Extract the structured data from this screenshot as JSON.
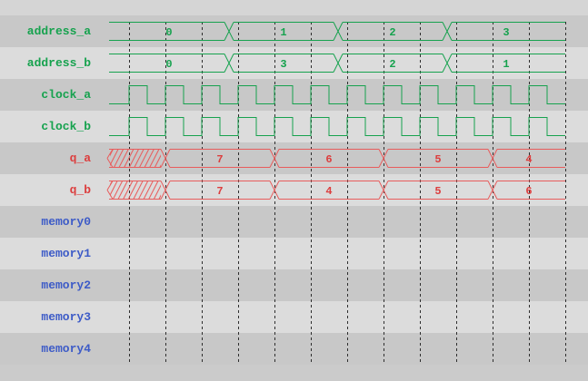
{
  "app": {
    "name": "waveform-viewer"
  },
  "palette": {
    "signal_green": "#16a24e",
    "signal_red": "#e85c5c",
    "value_red": "#dc3e3e",
    "label_blue": "#3d5bc7",
    "row_dark": "#c8c8c8",
    "row_light": "#dcdcdc",
    "top_strip": "#d5d5d5",
    "page_bg": "#cbcbcb",
    "grid": "#2e2e2e"
  },
  "chart_data": {
    "type": "waveform-timing-diagram",
    "t_start": 0,
    "t_end": 502,
    "grid": {
      "t_first": 22,
      "step": 40,
      "count": 13
    },
    "signals": [
      {
        "name": "address_a",
        "kind": "bus",
        "color": "green",
        "segments": [
          {
            "label": "0",
            "t0": 0,
            "t1": 132
          },
          {
            "label": "1",
            "t0": 132,
            "t1": 252
          },
          {
            "label": "2",
            "t0": 252,
            "t1": 372
          },
          {
            "label": "3",
            "t0": 372,
            "t1": 502
          }
        ]
      },
      {
        "name": "address_b",
        "kind": "bus",
        "color": "green",
        "segments": [
          {
            "label": "0",
            "t0": 0,
            "t1": 132
          },
          {
            "label": "3",
            "t0": 132,
            "t1": 252
          },
          {
            "label": "2",
            "t0": 252,
            "t1": 372
          },
          {
            "label": "1",
            "t0": 372,
            "t1": 502
          }
        ]
      },
      {
        "name": "clock_a",
        "kind": "clock",
        "color": "green",
        "clock": {
          "t_first_rise": 22,
          "period": 40,
          "high_width": 20
        }
      },
      {
        "name": "clock_b",
        "kind": "clock",
        "color": "green",
        "clock": {
          "t_first_rise": 22,
          "period": 40,
          "high_width": 20
        }
      },
      {
        "name": "q_a",
        "kind": "bus",
        "color": "red",
        "segments": [
          {
            "label": "",
            "unknown": true,
            "t0": 0,
            "t1": 62
          },
          {
            "label": "7",
            "t0": 62,
            "t1": 182
          },
          {
            "label": "6",
            "t0": 182,
            "t1": 302
          },
          {
            "label": "5",
            "t0": 302,
            "t1": 422
          },
          {
            "label": "4",
            "t0": 422,
            "t1": 502
          }
        ]
      },
      {
        "name": "q_b",
        "kind": "bus",
        "color": "red",
        "segments": [
          {
            "label": "",
            "unknown": true,
            "t0": 0,
            "t1": 62
          },
          {
            "label": "7",
            "t0": 62,
            "t1": 182
          },
          {
            "label": "4",
            "t0": 182,
            "t1": 302
          },
          {
            "label": "5",
            "t0": 302,
            "t1": 422
          },
          {
            "label": "6",
            "t0": 422,
            "t1": 502
          }
        ]
      },
      {
        "name": "memory0",
        "kind": "empty",
        "color": "blue"
      },
      {
        "name": "memory1",
        "kind": "empty",
        "color": "blue"
      },
      {
        "name": "memory2",
        "kind": "empty",
        "color": "blue"
      },
      {
        "name": "memory3",
        "kind": "empty",
        "color": "blue"
      },
      {
        "name": "memory4",
        "kind": "empty",
        "color": "blue"
      }
    ]
  }
}
